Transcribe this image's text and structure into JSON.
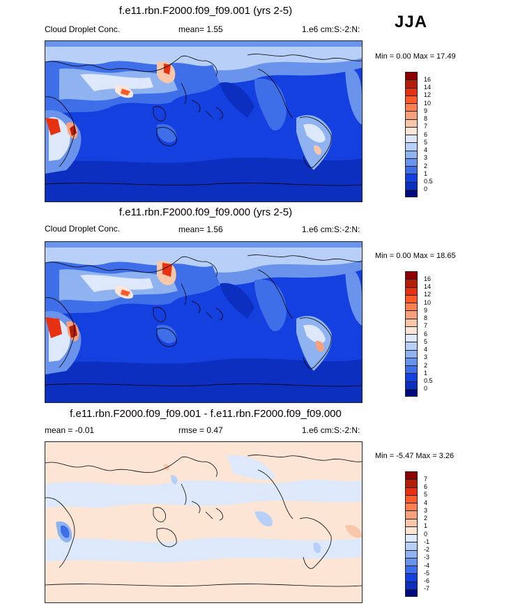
{
  "season": "JJA",
  "panels": [
    {
      "id": "p1",
      "title": "f.e11.rbn.F2000.f09_f09.001 (yrs 2-5)",
      "left_label": "Cloud Droplet Conc.",
      "center_label": "mean=   1.55",
      "right_label": "1.e6 cm:S:-2:N:",
      "minmax": "Min =   0.00 Max =  17.49",
      "colorbar": {
        "labels": [
          "16",
          "14",
          "12",
          "10",
          "9",
          "8",
          "7",
          "6",
          "5",
          "4",
          "3",
          "2",
          "1",
          "0.5",
          "0"
        ],
        "colors": [
          "#8b0000",
          "#b31e0a",
          "#e63212",
          "#ff5a2a",
          "#ff7f50",
          "#f7a07e",
          "#f8c6a8",
          "#fbe6d8",
          "#dde9fb",
          "#b8d0f7",
          "#8fb3f0",
          "#6a94ec",
          "#3e6ee8",
          "#1540e0",
          "#0d2fbf",
          "#000a80"
        ]
      }
    },
    {
      "id": "p2",
      "title": "f.e11.rbn.F2000.f09_f09.000 (yrs 2-5)",
      "left_label": "Cloud Droplet Conc.",
      "center_label": "mean=   1.56",
      "right_label": "1.e6 cm:S:-2:N:",
      "minmax": "Min =   0.00 Max =  18.65",
      "colorbar": {
        "labels": [
          "16",
          "14",
          "12",
          "10",
          "9",
          "8",
          "7",
          "6",
          "5",
          "4",
          "3",
          "2",
          "1",
          "0.5",
          "0"
        ],
        "colors": [
          "#8b0000",
          "#b31e0a",
          "#e63212",
          "#ff5a2a",
          "#ff7f50",
          "#f7a07e",
          "#f8c6a8",
          "#fbe6d8",
          "#dde9fb",
          "#b8d0f7",
          "#8fb3f0",
          "#6a94ec",
          "#3e6ee8",
          "#1540e0",
          "#0d2fbf",
          "#000a80"
        ]
      }
    },
    {
      "id": "p3",
      "title": "f.e11.rbn.F2000.f09_f09.001 - f.e11.rbn.F2000.f09_f09.000",
      "left_label": "mean =  -0.01",
      "center_label": "rmse =   0.47",
      "right_label": "1.e6 cm:S:-2:N:",
      "minmax": "Min =  -5.47 Max =   3.26",
      "colorbar": {
        "labels": [
          "7",
          "6",
          "5",
          "4",
          "3",
          "2",
          "1",
          "0",
          "-1",
          "-2",
          "-3",
          "-4",
          "-5",
          "-6",
          "-7"
        ],
        "colors": [
          "#8b0000",
          "#b31e0a",
          "#e63212",
          "#ff5a2a",
          "#ff7f50",
          "#f7a07e",
          "#f8c6a8",
          "#fde5d6",
          "#dde9fb",
          "#b8d0f7",
          "#8fb3f0",
          "#6a94ec",
          "#3e6ee8",
          "#1540e0",
          "#0d2fbf",
          "#000a80"
        ]
      }
    }
  ]
}
